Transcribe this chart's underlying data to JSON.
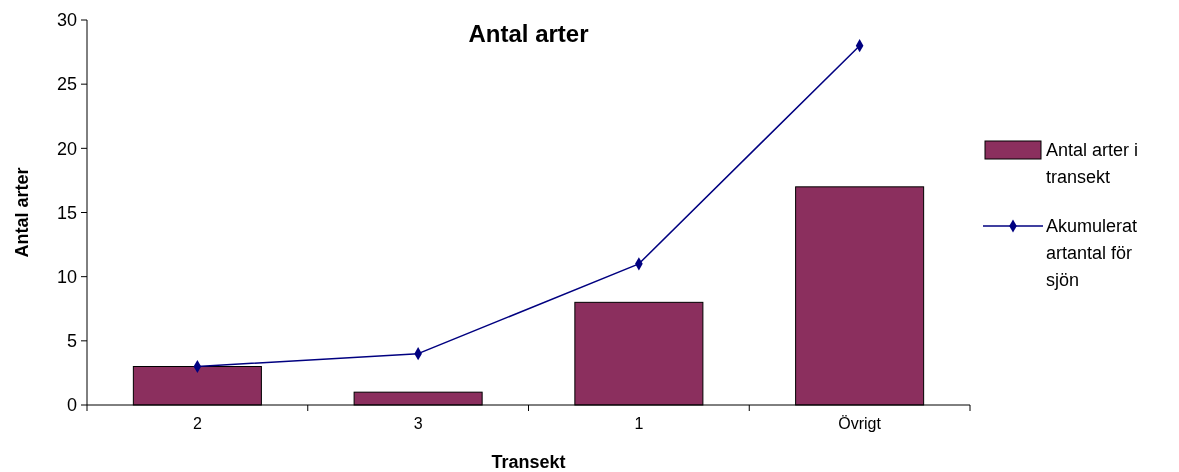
{
  "chart_data": {
    "type": "bar",
    "title": "Antal arter",
    "xlabel": "Transekt",
    "ylabel": "Antal arter",
    "categories": [
      "2",
      "3",
      "1",
      "Övrigt"
    ],
    "series": [
      {
        "name": "Antal arter i transekt",
        "color": "#8b2f5e",
        "values": [
          3,
          1,
          8,
          17
        ]
      },
      {
        "name": "Akumulerat artantal för sjön",
        "type": "line",
        "color": "#000080",
        "values": [
          3,
          4,
          11,
          28
        ],
        "marker": "diamond"
      }
    ],
    "ylim": [
      0,
      30
    ],
    "yticks": [
      0,
      5,
      10,
      15,
      20,
      25,
      30
    ],
    "grid": false,
    "legend": "right"
  }
}
